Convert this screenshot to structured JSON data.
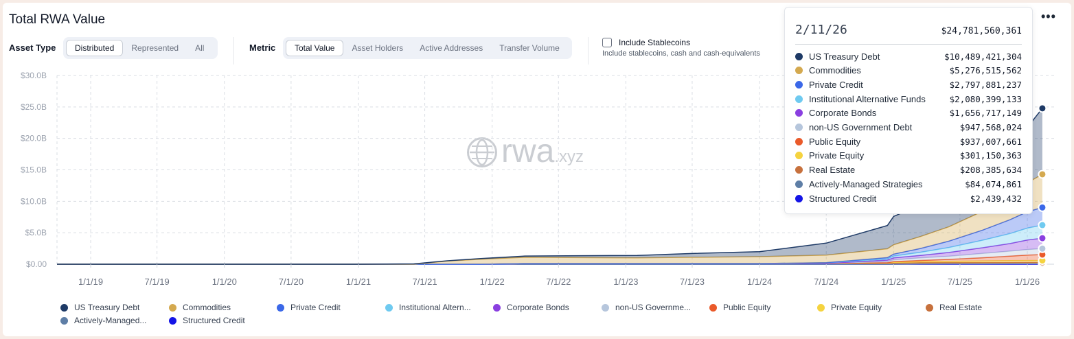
{
  "header": {
    "title": "Total RWA Value",
    "more_label": "•••"
  },
  "controls": {
    "asset_type": {
      "label": "Asset Type",
      "options": [
        "Distributed",
        "Represented",
        "All"
      ],
      "selected": "Distributed"
    },
    "metric": {
      "label": "Metric",
      "options": [
        "Total Value",
        "Asset Holders",
        "Active Addresses",
        "Transfer Volume"
      ],
      "selected": "Total Value"
    },
    "stablecoins": {
      "label": "Include Stablecoins",
      "sublabel": "Include stablecoins, cash and cash-equivalents",
      "checked": false
    }
  },
  "watermark": {
    "main": "rwa",
    "suffix": ".xyz"
  },
  "tooltip": {
    "date": "2/11/26",
    "total": "$24,781,560,361",
    "rows": [
      {
        "name": "US Treasury Debt",
        "value": "$10,489,421,304",
        "color": "#1e3a66"
      },
      {
        "name": "Commodities",
        "value": "$5,276,515,562",
        "color": "#d4a94f"
      },
      {
        "name": "Private Credit",
        "value": "$2,797,881,237",
        "color": "#3b68e8"
      },
      {
        "name": "Institutional Alternative Funds",
        "value": "$2,080,399,133",
        "color": "#6fcaf0"
      },
      {
        "name": "Corporate Bonds",
        "value": "$1,656,717,149",
        "color": "#8a3fe0"
      },
      {
        "name": "non-US Government Debt",
        "value": "$947,568,024",
        "color": "#b6c6dc"
      },
      {
        "name": "Public Equity",
        "value": "$937,007,661",
        "color": "#ea5a2a"
      },
      {
        "name": "Private Equity",
        "value": "$301,150,363",
        "color": "#f5d33f"
      },
      {
        "name": "Real Estate",
        "value": "$208,385,634",
        "color": "#c7713d"
      },
      {
        "name": "Actively-Managed Strategies",
        "value": "$84,074,861",
        "color": "#5e7ea6"
      },
      {
        "name": "Structured Credit",
        "value": "$2,439,432",
        "color": "#1414e6"
      }
    ]
  },
  "legend": [
    {
      "label": "US Treasury Debt",
      "color": "#1e3a66"
    },
    {
      "label": "Commodities",
      "color": "#d4a94f"
    },
    {
      "label": "Private Credit",
      "color": "#3b68e8"
    },
    {
      "label": "Institutional Altern...",
      "color": "#6fcaf0"
    },
    {
      "label": "Corporate Bonds",
      "color": "#8a3fe0"
    },
    {
      "label": "non-US Governme...",
      "color": "#b6c6dc"
    },
    {
      "label": "Public Equity",
      "color": "#ea5a2a"
    },
    {
      "label": "Private Equity",
      "color": "#f5d33f"
    },
    {
      "label": "Real Estate",
      "color": "#c7713d"
    },
    {
      "label": "Actively-Managed...",
      "color": "#5e7ea6"
    },
    {
      "label": "Structured Credit",
      "color": "#1414e6"
    }
  ],
  "chart_data": {
    "type": "area",
    "stacked": true,
    "title": "Total RWA Value",
    "grid": true,
    "legend_position": "bottom",
    "x_ticks": [
      "1/1/19",
      "7/1/19",
      "1/1/20",
      "7/1/20",
      "1/1/21",
      "7/1/21",
      "1/1/22",
      "7/1/22",
      "1/1/23",
      "7/1/23",
      "1/1/24",
      "7/1/24",
      "1/1/25",
      "7/1/25",
      "1/1/26"
    ],
    "y_ticks": [
      "$0.00",
      "$5.0B",
      "$10.0B",
      "$15.0B",
      "$20.0B",
      "$25.0B",
      "$30.0B"
    ],
    "ylim": [
      0,
      30
    ],
    "yunit": "B USD",
    "x": [
      "2018-10-01",
      "2021-01-01",
      "2021-06-01",
      "2021-09-01",
      "2021-12-01",
      "2022-04-01",
      "2022-09-01",
      "2023-02-01",
      "2023-07-01",
      "2024-01-01",
      "2024-07-01",
      "2024-12-15",
      "2025-01-01",
      "2025-03-15",
      "2025-06-01",
      "2025-09-01",
      "2025-11-15",
      "2026-01-01",
      "2026-02-11"
    ],
    "series": [
      {
        "name": "Structured Credit",
        "values": [
          0,
          0,
          0,
          0,
          0,
          0,
          0,
          0,
          0,
          0,
          0,
          0,
          0,
          0,
          0,
          0,
          0,
          0,
          0.0024
        ]
      },
      {
        "name": "Actively-Managed Strategies",
        "values": [
          0,
          0,
          0,
          0,
          0,
          0,
          0,
          0,
          0,
          0,
          0,
          0,
          0,
          0.05,
          0.06,
          0.07,
          0.08,
          0.08,
          0.084
        ]
      },
      {
        "name": "Real Estate",
        "values": [
          0,
          0,
          0,
          0,
          0,
          0.1,
          0.1,
          0.1,
          0.1,
          0.1,
          0.15,
          0.15,
          0.2,
          0.2,
          0.2,
          0.2,
          0.2,
          0.21,
          0.208
        ]
      },
      {
        "name": "Private Equity",
        "values": [
          0,
          0,
          0,
          0,
          0,
          0,
          0,
          0,
          0,
          0,
          0,
          0.05,
          0.1,
          0.15,
          0.2,
          0.25,
          0.3,
          0.3,
          0.301
        ]
      },
      {
        "name": "Public Equity",
        "values": [
          0,
          0,
          0,
          0,
          0,
          0,
          0,
          0,
          0,
          0,
          0,
          0.05,
          0.1,
          0.2,
          0.3,
          0.5,
          0.7,
          0.85,
          0.937
        ]
      },
      {
        "name": "non-US Government Debt",
        "values": [
          0,
          0,
          0,
          0,
          0,
          0,
          0,
          0,
          0,
          0,
          0,
          0.2,
          0.3,
          0.4,
          0.5,
          0.7,
          0.8,
          0.9,
          0.948
        ]
      },
      {
        "name": "Corporate Bonds",
        "values": [
          0,
          0,
          0,
          0,
          0,
          0,
          0,
          0,
          0,
          0,
          0,
          0.2,
          0.3,
          0.4,
          0.6,
          0.9,
          1.2,
          1.5,
          1.657
        ]
      },
      {
        "name": "Institutional Alternative Funds",
        "values": [
          0,
          0,
          0,
          0,
          0,
          0,
          0,
          0,
          0,
          0,
          0.1,
          0.2,
          0.3,
          0.5,
          0.8,
          1.2,
          1.6,
          1.9,
          2.08
        ]
      },
      {
        "name": "Private Credit",
        "values": [
          0,
          0,
          0,
          0,
          0,
          0,
          0,
          0,
          0,
          0,
          0,
          0.2,
          0.3,
          0.6,
          1.0,
          1.6,
          2.2,
          2.6,
          2.798
        ]
      },
      {
        "name": "Commodities",
        "values": [
          0,
          0,
          0,
          0.5,
          0.8,
          1.0,
          0.95,
          0.9,
          1.0,
          1.1,
          1.2,
          1.4,
          1.5,
          1.9,
          2.3,
          3.0,
          3.8,
          4.6,
          5.277
        ]
      },
      {
        "name": "US Treasury Debt",
        "values": [
          0,
          0,
          0.05,
          0.05,
          0.1,
          0.2,
          0.3,
          0.4,
          0.6,
          0.8,
          1.9,
          3.7,
          4.5,
          5.0,
          6.0,
          7.0,
          7.8,
          8.8,
          10.489
        ]
      }
    ]
  }
}
